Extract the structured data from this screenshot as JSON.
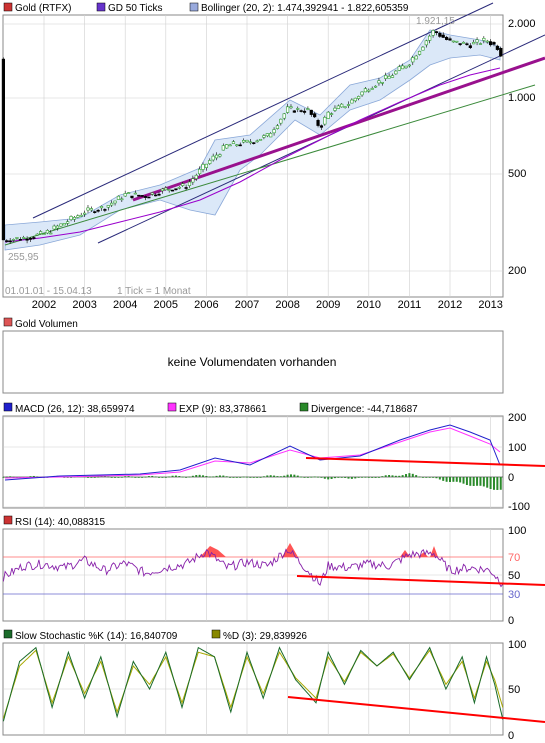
{
  "colors": {
    "grid": "#c8c8c8",
    "frame": "#888888",
    "candle_up": "#2f9e2f",
    "candle_down": "#000000",
    "gd50": "#9900cc",
    "bollinger_fill": "#dbe8f8",
    "bollinger_line": "#8aa8d8",
    "channel": "#2a2a7a",
    "trend_purple": "#99118e",
    "trend_green": "#3b8a3b",
    "macd": "#2020cc",
    "exp": "#ff33ff",
    "divergence": "#2a8a2a",
    "rsi": "#8822aa",
    "rsi_fill": "#ff5555",
    "stoch_k": "#1a6b2a",
    "stoch_d": "#a8a800",
    "red_trend": "#ff0000",
    "rsi_70": "#ff6666",
    "rsi_30": "#6666cc"
  },
  "legend": {
    "gold": {
      "icon": "square-icon",
      "color": "#cc3333",
      "label": "Gold (RTFX)"
    },
    "gd50": {
      "icon": "square-icon",
      "color": "#6633cc",
      "label": "GD 50 Ticks"
    },
    "bollinger": {
      "icon": "square-icon",
      "color": "#99aadd",
      "label": "Bollinger (20, 2): 1.474,392941 - 1.822,605359"
    },
    "volume": {
      "icon": "square-icon",
      "color": "#dd5555",
      "label": "Gold Volumen"
    },
    "macd": {
      "icon": "square-icon",
      "color": "#2020cc",
      "label": "MACD (26, 12): 38,659974"
    },
    "exp": {
      "icon": "square-icon",
      "color": "#ff33ff",
      "label": "EXP (9): 83,378661"
    },
    "divergence": {
      "icon": "square-icon",
      "color": "#2a8a2a",
      "label": "Divergence: -44,718687"
    },
    "rsi": {
      "icon": "square-icon",
      "color": "#cc3333",
      "label": "RSI (14): 40,088315"
    },
    "stoch_k": {
      "icon": "square-icon",
      "color": "#1a6b2a",
      "label": "Slow Stochastic %K (14): 16,840709"
    },
    "stoch_d": {
      "icon": "square-icon",
      "color": "#888800",
      "label": "%D (3): 29,839926"
    }
  },
  "price_panel": {
    "date_range": "01.01.01 - 15.04.13",
    "tick_info": "1 Tick = 1 Monat",
    "high_label": "1.921,15",
    "low_label": "255,95"
  },
  "volume_panel": {
    "message": "keine Volumendaten vorhanden"
  },
  "chart_data": [
    {
      "type": "candlestick",
      "title": "Gold (RTFX)",
      "scale": "log",
      "x": [
        "2002",
        "2003",
        "2004",
        "2005",
        "2006",
        "2007",
        "2008",
        "2009",
        "2010",
        "2011",
        "2012",
        "2013"
      ],
      "y_ticks": [
        "2.000",
        "1.000",
        "500",
        "200"
      ],
      "series": [
        {
          "name": "Gold (RTFX)",
          "values": [
            [
              2001.0,
              265
            ],
            [
              2001.5,
              270
            ],
            [
              2002.0,
              280
            ],
            [
              2002.5,
              310
            ],
            [
              2003.0,
              345
            ],
            [
              2003.5,
              360
            ],
            [
              2004.0,
              405
            ],
            [
              2004.5,
              400
            ],
            [
              2005.0,
              425
            ],
            [
              2005.5,
              440
            ],
            [
              2006.0,
              540
            ],
            [
              2006.5,
              640
            ],
            [
              2007.0,
              660
            ],
            [
              2007.5,
              700
            ],
            [
              2008.0,
              900
            ],
            [
              2008.5,
              890
            ],
            [
              2008.8,
              760
            ],
            [
              2009.0,
              870
            ],
            [
              2009.5,
              950
            ],
            [
              2010.0,
              1110
            ],
            [
              2010.5,
              1220
            ],
            [
              2011.0,
              1400
            ],
            [
              2011.6,
              1880
            ],
            [
              2012.0,
              1690
            ],
            [
              2012.5,
              1650
            ],
            [
              2012.9,
              1720
            ],
            [
              2013.2,
              1600
            ],
            [
              2013.3,
              1440
            ]
          ]
        },
        {
          "name": "GD 50 Ticks",
          "values": [
            [
              2001.0,
              270
            ],
            [
              2002.0,
              285
            ],
            [
              2003.0,
              320
            ],
            [
              2004.0,
              365
            ],
            [
              2005.0,
              410
            ],
            [
              2006.0,
              480
            ],
            [
              2007.0,
              560
            ],
            [
              2008.0,
              670
            ],
            [
              2009.0,
              800
            ],
            [
              2010.0,
              950
            ],
            [
              2011.0,
              1130
            ],
            [
              2012.0,
              1330
            ],
            [
              2013.0,
              1470
            ],
            [
              2013.3,
              1500
            ]
          ]
        },
        {
          "name": "Bollinger upper",
          "values": [
            [
              2001.0,
              290
            ],
            [
              2002.0,
              310
            ],
            [
              2003.0,
              380
            ],
            [
              2004.0,
              430
            ],
            [
              2005.0,
              470
            ],
            [
              2006.0,
              700
            ],
            [
              2007.0,
              740
            ],
            [
              2008.0,
              1000
            ],
            [
              2009.0,
              1000
            ],
            [
              2010.0,
              1260
            ],
            [
              2011.0,
              1500
            ],
            [
              2011.7,
              2000
            ],
            [
              2012.5,
              1850
            ],
            [
              2013.3,
              1820
            ]
          ]
        },
        {
          "name": "Bollinger lower",
          "values": [
            [
              2001.0,
              255
            ],
            [
              2002.0,
              260
            ],
            [
              2003.0,
              300
            ],
            [
              2004.0,
              370
            ],
            [
              2005.0,
              410
            ],
            [
              2006.0,
              420
            ],
            [
              2007.0,
              560
            ],
            [
              2008.0,
              720
            ],
            [
              2009.0,
              760
            ],
            [
              2010.0,
              980
            ],
            [
              2011.0,
              1100
            ],
            [
              2012.0,
              1480
            ],
            [
              2013.0,
              1530
            ],
            [
              2013.3,
              1474
            ]
          ]
        }
      ]
    },
    {
      "type": "bar",
      "title": "Gold Volumen",
      "values": []
    },
    {
      "type": "line",
      "title": "MACD (26, 12)",
      "x": [
        "2002",
        "2003",
        "2004",
        "2005",
        "2006",
        "2007",
        "2008",
        "2009",
        "2010",
        "2011",
        "2012",
        "2013"
      ],
      "y_ticks": [
        "200",
        "100",
        "0",
        "-100"
      ],
      "ylim": [
        -100,
        200
      ],
      "series": [
        {
          "name": "MACD (26, 12)",
          "values": [
            [
              2001,
              -5
            ],
            [
              2002,
              3
            ],
            [
              2003,
              5
            ],
            [
              2004,
              6
            ],
            [
              2005,
              8
            ],
            [
              2006,
              30
            ],
            [
              2007,
              20
            ],
            [
              2008,
              55
            ],
            [
              2009,
              30
            ],
            [
              2010,
              40
            ],
            [
              2011,
              70
            ],
            [
              2011.8,
              105
            ],
            [
              2012.5,
              60
            ],
            [
              2013.3,
              38.66
            ]
          ]
        },
        {
          "name": "EXP (9)",
          "values": [
            [
              2001,
              -4
            ],
            [
              2002,
              2
            ],
            [
              2003,
              4
            ],
            [
              2004,
              6
            ],
            [
              2005,
              7
            ],
            [
              2006,
              25
            ],
            [
              2007,
              22
            ],
            [
              2008,
              48
            ],
            [
              2009,
              35
            ],
            [
              2010,
              42
            ],
            [
              2011,
              60
            ],
            [
              2011.8,
              100
            ],
            [
              2012.5,
              75
            ],
            [
              2013.3,
              83.38
            ]
          ]
        },
        {
          "name": "Divergence",
          "values": [
            [
              2001,
              -1
            ],
            [
              2002,
              1
            ],
            [
              2003,
              1
            ],
            [
              2004,
              0
            ],
            [
              2005,
              1
            ],
            [
              2006,
              5
            ],
            [
              2007,
              -2
            ],
            [
              2008,
              7
            ],
            [
              2009,
              -5
            ],
            [
              2010,
              -2
            ],
            [
              2011,
              10
            ],
            [
              2012,
              -15
            ],
            [
              2013.3,
              -44.72
            ]
          ]
        }
      ]
    },
    {
      "type": "line",
      "title": "RSI (14)",
      "x": [
        "2002",
        "2003",
        "2004",
        "2005",
        "2006",
        "2007",
        "2008",
        "2009",
        "2010",
        "2011",
        "2012",
        "2013"
      ],
      "y_ticks": [
        "100",
        "70",
        "50",
        "30",
        "0"
      ],
      "ylim": [
        0,
        100
      ],
      "series": [
        {
          "name": "RSI (14)",
          "values": [
            [
              2001,
              48
            ],
            [
              2001.5,
              60
            ],
            [
              2002,
              62
            ],
            [
              2002.5,
              58
            ],
            [
              2003,
              66
            ],
            [
              2003.5,
              55
            ],
            [
              2004,
              63
            ],
            [
              2004.5,
              52
            ],
            [
              2005,
              58
            ],
            [
              2005.5,
              62
            ],
            [
              2006,
              76
            ],
            [
              2006.5,
              58
            ],
            [
              2007,
              64
            ],
            [
              2007.5,
              60
            ],
            [
              2008,
              78
            ],
            [
              2008.5,
              55
            ],
            [
              2008.8,
              40
            ],
            [
              2009,
              60
            ],
            [
              2009.5,
              58
            ],
            [
              2010,
              62
            ],
            [
              2010.5,
              60
            ],
            [
              2011,
              72
            ],
            [
              2011.6,
              74
            ],
            [
              2012,
              55
            ],
            [
              2012.5,
              58
            ],
            [
              2013,
              55
            ],
            [
              2013.3,
              40.09
            ]
          ]
        }
      ]
    },
    {
      "type": "line",
      "title": "Slow Stochastic %K (14)",
      "x": [
        "2002",
        "2003",
        "2004",
        "2005",
        "2006",
        "2007",
        "2008",
        "2009",
        "2010",
        "2011",
        "2012",
        "2013"
      ],
      "y_ticks": [
        "100",
        "50",
        "0"
      ],
      "ylim": [
        0,
        100
      ],
      "series": [
        {
          "name": "Slow Stochastic %K (14)",
          "values": [
            [
              2001,
              15
            ],
            [
              2001.4,
              80
            ],
            [
              2001.8,
              95
            ],
            [
              2002.2,
              30
            ],
            [
              2002.6,
              90
            ],
            [
              2003.0,
              40
            ],
            [
              2003.4,
              85
            ],
            [
              2003.8,
              20
            ],
            [
              2004.2,
              80
            ],
            [
              2004.6,
              50
            ],
            [
              2005.0,
              90
            ],
            [
              2005.4,
              30
            ],
            [
              2005.8,
              95
            ],
            [
              2006.2,
              85
            ],
            [
              2006.6,
              25
            ],
            [
              2007.0,
              90
            ],
            [
              2007.4,
              40
            ],
            [
              2007.8,
              95
            ],
            [
              2008.2,
              60
            ],
            [
              2008.7,
              35
            ],
            [
              2009.0,
              90
            ],
            [
              2009.4,
              55
            ],
            [
              2009.8,
              92
            ],
            [
              2010.2,
              75
            ],
            [
              2010.6,
              90
            ],
            [
              2011.0,
              60
            ],
            [
              2011.5,
              95
            ],
            [
              2011.9,
              50
            ],
            [
              2012.3,
              85
            ],
            [
              2012.6,
              35
            ],
            [
              2012.9,
              85
            ],
            [
              2013.1,
              55
            ],
            [
              2013.3,
              16.84
            ]
          ]
        },
        {
          "name": "%D (3)",
          "values": [
            [
              2001,
              18
            ],
            [
              2001.4,
              75
            ],
            [
              2001.8,
              92
            ],
            [
              2002.2,
              35
            ],
            [
              2002.6,
              85
            ],
            [
              2003.0,
              45
            ],
            [
              2003.4,
              80
            ],
            [
              2003.8,
              25
            ],
            [
              2004.2,
              75
            ],
            [
              2004.6,
              55
            ],
            [
              2005.0,
              85
            ],
            [
              2005.4,
              35
            ],
            [
              2005.8,
              90
            ],
            [
              2006.2,
              85
            ],
            [
              2006.6,
              30
            ],
            [
              2007.0,
              85
            ],
            [
              2007.4,
              45
            ],
            [
              2007.8,
              90
            ],
            [
              2008.2,
              62
            ],
            [
              2008.7,
              40
            ],
            [
              2009.0,
              85
            ],
            [
              2009.4,
              58
            ],
            [
              2009.8,
              90
            ],
            [
              2010.2,
              75
            ],
            [
              2010.6,
              88
            ],
            [
              2011.0,
              62
            ],
            [
              2011.5,
              92
            ],
            [
              2011.9,
              55
            ],
            [
              2012.3,
              80
            ],
            [
              2012.6,
              40
            ],
            [
              2012.9,
              80
            ],
            [
              2013.1,
              60
            ],
            [
              2013.3,
              29.84
            ]
          ]
        }
      ]
    }
  ]
}
